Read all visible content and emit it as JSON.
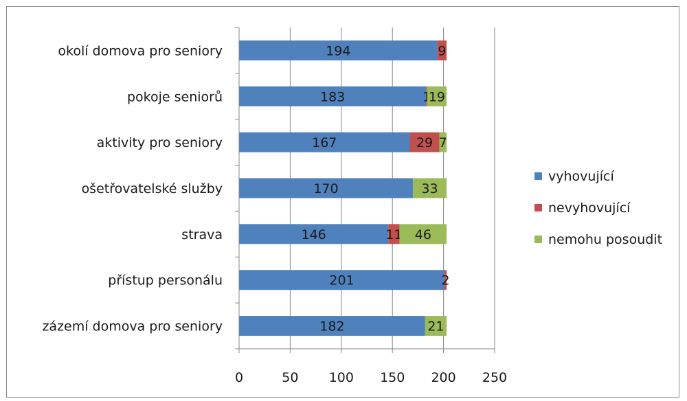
{
  "chart_data": {
    "type": "bar",
    "orientation": "horizontal",
    "stacked": true,
    "categories": [
      "zázemí domova pro seniory",
      "přístup personálu",
      "strava",
      "ošetřovatelské služby",
      "aktivity pro seniory",
      "pokoje seniorů",
      "okolí domova pro seniory"
    ],
    "series": [
      {
        "name": "vyhovující",
        "color": "#4f81bd",
        "values": [
          182,
          201,
          146,
          170,
          167,
          183,
          194
        ]
      },
      {
        "name": "nevyhovující",
        "color": "#c0504d",
        "values": [
          0,
          2,
          11,
          0,
          29,
          1,
          9
        ]
      },
      {
        "name": "nemohu posoudit",
        "color": "#9bbb59",
        "values": [
          21,
          0,
          46,
          33,
          7,
          19,
          0
        ]
      }
    ],
    "data_labels": [
      [
        "182",
        "",
        "21"
      ],
      [
        "201",
        "2",
        ""
      ],
      [
        "146",
        "11",
        "46"
      ],
      [
        "170",
        "",
        "33"
      ],
      [
        "167",
        "29",
        "7"
      ],
      [
        "183",
        "1",
        "19"
      ],
      [
        "194",
        "9",
        ""
      ]
    ],
    "x_ticks": [
      "0",
      "50",
      "100",
      "150",
      "200",
      "250"
    ],
    "xlim": [
      0,
      250
    ],
    "grid": true,
    "legend_position": "right",
    "title": "",
    "xlabel": "",
    "ylabel": ""
  }
}
